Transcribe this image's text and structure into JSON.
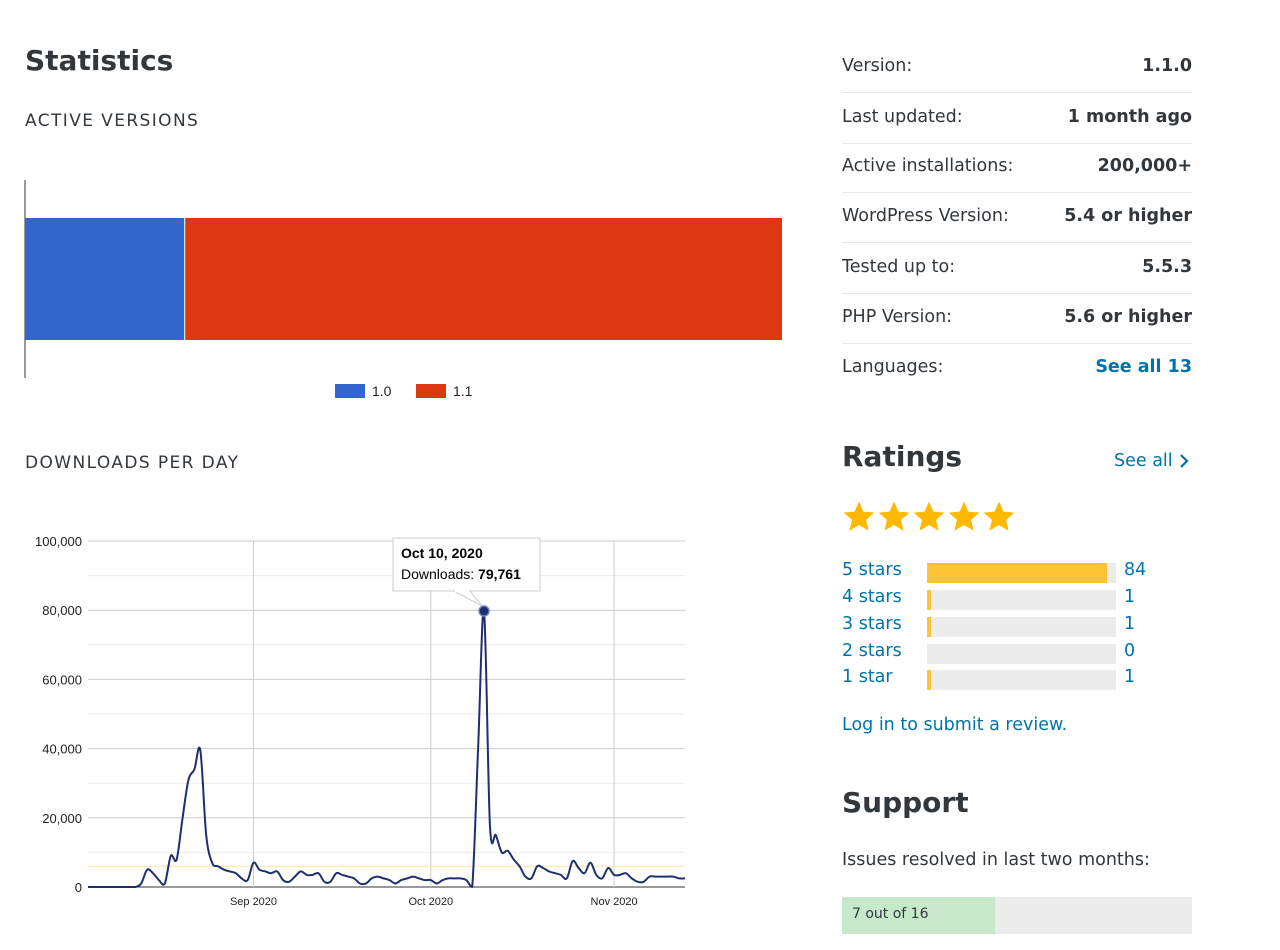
{
  "statistics": {
    "title": "Statistics",
    "active_versions_label": "ACTIVE VERSIONS",
    "downloads_label": "DOWNLOADS PER DAY"
  },
  "chart_data": [
    {
      "type": "bar",
      "stacked": true,
      "orientation": "horizontal",
      "categories": [
        "Active versions"
      ],
      "series": [
        {
          "name": "1.0",
          "values": [
            21.1
          ],
          "color": "#3366cc"
        },
        {
          "name": "1.1",
          "values": [
            78.9
          ],
          "color": "#dc3912"
        }
      ],
      "unit": "percent",
      "legend": "bottom"
    },
    {
      "type": "line",
      "xlabel": "",
      "ylabel": "",
      "ylim": [
        0,
        100000
      ],
      "yticks": [
        "0",
        "20,000",
        "40,000",
        "60,000",
        "80,000",
        "100,000"
      ],
      "xticks": [
        {
          "date": "2020-09-01",
          "label": "Sep 2020"
        },
        {
          "date": "2020-10-01",
          "label": "Oct 2020"
        },
        {
          "date": "2020-11-01",
          "label": "Nov 2020"
        }
      ],
      "xrange": [
        "2020-08-04",
        "2020-11-13"
      ],
      "grid": true,
      "reference_line": {
        "value": 6000,
        "color": "#f5e6a3"
      },
      "series": [
        {
          "color": "#1d2f6f",
          "points": [
            [
              "2020-08-04",
              0
            ],
            [
              "2020-08-10",
              0
            ],
            [
              "2020-08-11",
              0
            ],
            [
              "2020-08-12",
              0
            ],
            [
              "2020-08-13",
              1000
            ],
            [
              "2020-08-14",
              5000
            ],
            [
              "2020-08-15",
              4000
            ],
            [
              "2020-08-16",
              2000
            ],
            [
              "2020-08-17",
              1000
            ],
            [
              "2020-08-18",
              9000
            ],
            [
              "2020-08-19",
              8000
            ],
            [
              "2020-08-20",
              20000
            ],
            [
              "2020-08-21",
              31000
            ],
            [
              "2020-08-22",
              34000
            ],
            [
              "2020-08-23",
              39500
            ],
            [
              "2020-08-24",
              15000
            ],
            [
              "2020-08-25",
              7000
            ],
            [
              "2020-08-26",
              6000
            ],
            [
              "2020-08-27",
              5000
            ],
            [
              "2020-08-28",
              4500
            ],
            [
              "2020-08-29",
              4000
            ],
            [
              "2020-08-30",
              2500
            ],
            [
              "2020-08-31",
              2000
            ],
            [
              "2020-09-01",
              7000
            ],
            [
              "2020-09-02",
              5000
            ],
            [
              "2020-09-03",
              4500
            ],
            [
              "2020-09-04",
              4000
            ],
            [
              "2020-09-05",
              4500
            ],
            [
              "2020-09-06",
              2000
            ],
            [
              "2020-09-07",
              1500
            ],
            [
              "2020-09-08",
              3000
            ],
            [
              "2020-09-09",
              4500
            ],
            [
              "2020-09-10",
              3500
            ],
            [
              "2020-09-11",
              3500
            ],
            [
              "2020-09-12",
              4000
            ],
            [
              "2020-09-13",
              1500
            ],
            [
              "2020-09-14",
              1500
            ],
            [
              "2020-09-15",
              4000
            ],
            [
              "2020-09-16",
              3500
            ],
            [
              "2020-09-17",
              3000
            ],
            [
              "2020-09-18",
              2500
            ],
            [
              "2020-09-19",
              1000
            ],
            [
              "2020-09-20",
              1000
            ],
            [
              "2020-09-21",
              2500
            ],
            [
              "2020-09-22",
              3000
            ],
            [
              "2020-09-23",
              2500
            ],
            [
              "2020-09-24",
              2000
            ],
            [
              "2020-09-25",
              1000
            ],
            [
              "2020-09-26",
              2000
            ],
            [
              "2020-09-27",
              2500
            ],
            [
              "2020-09-28",
              3000
            ],
            [
              "2020-09-29",
              2500
            ],
            [
              "2020-09-30",
              2000
            ],
            [
              "2020-10-01",
              2000
            ],
            [
              "2020-10-02",
              1000
            ],
            [
              "2020-10-03",
              2000
            ],
            [
              "2020-10-04",
              2500
            ],
            [
              "2020-10-05",
              2500
            ],
            [
              "2020-10-06",
              2500
            ],
            [
              "2020-10-07",
              2000
            ],
            [
              "2020-10-08",
              0
            ],
            [
              "2020-10-09",
              40000
            ],
            [
              "2020-10-10",
              79761
            ],
            [
              "2020-10-11",
              18000
            ],
            [
              "2020-10-12",
              15000
            ],
            [
              "2020-10-13",
              10000
            ],
            [
              "2020-10-14",
              10500
            ],
            [
              "2020-10-15",
              8000
            ],
            [
              "2020-10-16",
              6000
            ],
            [
              "2020-10-17",
              3000
            ],
            [
              "2020-10-18",
              2500
            ],
            [
              "2020-10-19",
              6000
            ],
            [
              "2020-10-20",
              5500
            ],
            [
              "2020-10-21",
              4500
            ],
            [
              "2020-10-22",
              4000
            ],
            [
              "2020-10-23",
              3500
            ],
            [
              "2020-10-24",
              2500
            ],
            [
              "2020-10-25",
              7500
            ],
            [
              "2020-10-26",
              5500
            ],
            [
              "2020-10-27",
              4000
            ],
            [
              "2020-10-28",
              7000
            ],
            [
              "2020-10-29",
              3500
            ],
            [
              "2020-10-30",
              2500
            ],
            [
              "2020-10-31",
              5500
            ],
            [
              "2020-11-01",
              3500
            ],
            [
              "2020-11-02",
              3500
            ],
            [
              "2020-11-03",
              4000
            ],
            [
              "2020-11-04",
              2500
            ],
            [
              "2020-11-05",
              1500
            ],
            [
              "2020-11-06",
              1500
            ],
            [
              "2020-11-07",
              3000
            ],
            [
              "2020-11-08",
              3000
            ],
            [
              "2020-11-09",
              3000
            ],
            [
              "2020-11-10",
              3000
            ],
            [
              "2020-11-11",
              3000
            ],
            [
              "2020-11-12",
              2500
            ],
            [
              "2020-11-13",
              2500
            ]
          ]
        }
      ],
      "tooltip": {
        "date": "Oct 10, 2020",
        "label": "Downloads:",
        "value": "79,761",
        "point": [
          "2020-10-10",
          79761
        ]
      }
    }
  ],
  "meta": [
    {
      "key": "Version:",
      "value": "1.1.0",
      "link": false
    },
    {
      "key": "Last updated:",
      "value": "1 month ago",
      "link": false
    },
    {
      "key": "Active installations:",
      "value": "200,000+",
      "link": false
    },
    {
      "key": "WordPress Version:",
      "value": "5.4 or higher",
      "link": false
    },
    {
      "key": "Tested up to:",
      "value": "5.5.3",
      "link": false
    },
    {
      "key": "PHP Version:",
      "value": "5.6 or higher",
      "link": false
    },
    {
      "key": "Languages:",
      "value": "See all 13",
      "link": true
    }
  ],
  "ratings": {
    "title": "Ratings",
    "see_all": "See all",
    "stars_filled": 5,
    "star_color": "#ffb900",
    "rows": [
      {
        "label": "5 stars",
        "count": "84",
        "fraction": 0.95
      },
      {
        "label": "4 stars",
        "count": "1",
        "fraction": 0.02
      },
      {
        "label": "3 stars",
        "count": "1",
        "fraction": 0.02
      },
      {
        "label": "2 stars",
        "count": "0",
        "fraction": 0
      },
      {
        "label": "1 star",
        "count": "1",
        "fraction": 0.02
      }
    ],
    "login_link": "Log in to submit a review."
  },
  "support": {
    "title": "Support",
    "text": "Issues resolved in last two months:",
    "resolved_label": "7 out of 16",
    "resolved_fraction": 0.4375
  },
  "colors": {
    "link": "#0073aa",
    "text": "#32373c"
  }
}
